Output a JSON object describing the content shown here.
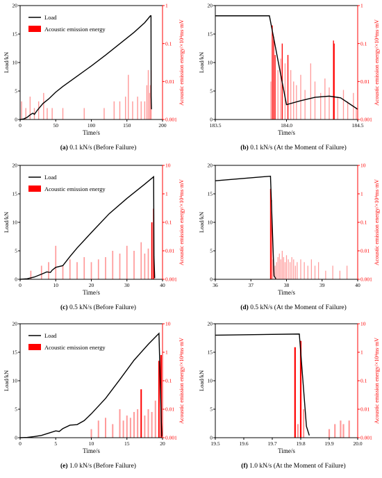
{
  "figure": {
    "axis_labels": {
      "x": "Time/s",
      "y": "Load/kN",
      "y2": "Acoustic emission energy/×10⁴ms·mV"
    },
    "legend": {
      "load": "Load",
      "ae": "Acoustic emission energy"
    },
    "colors": {
      "load": "#000000",
      "ae": "#ff0000",
      "ae_light": "#ff9a9a"
    }
  },
  "chart_data": [
    {
      "type": "line",
      "panel": "a",
      "caption_tag": "(a)",
      "caption_text": " 0.1 kN/s (Before Failure)",
      "legend": true,
      "xlim": [
        0,
        200
      ],
      "xticks": [
        0,
        50,
        100,
        150,
        200
      ],
      "ylim": [
        0,
        20
      ],
      "yticks": [
        0,
        5,
        10,
        15,
        20
      ],
      "y2lim": [
        0.001,
        1
      ],
      "y2ticks": [
        "0.001",
        "0.01",
        "0.1",
        "1"
      ],
      "y2log": true,
      "series": [
        {
          "name": "Load",
          "x": [
            0,
            5,
            10,
            15,
            18,
            20,
            24,
            28,
            32,
            40,
            50,
            60,
            80,
            100,
            120,
            140,
            160,
            175,
            183,
            183.8,
            184,
            184.5
          ],
          "y": [
            0,
            0.1,
            0.4,
            0.9,
            1.1,
            0.9,
            1.6,
            2.2,
            2.8,
            3.6,
            4.8,
            5.8,
            7.6,
            9.4,
            11.3,
            13.3,
            15.3,
            17.0,
            18.2,
            18.2,
            4.0,
            1.8
          ]
        },
        {
          "name": "Acoustic emission energy",
          "type": "bar",
          "x": [
            2,
            8,
            14,
            20,
            26,
            33,
            38,
            45,
            60,
            90,
            118,
            132,
            140,
            148,
            152,
            158,
            165,
            170,
            175,
            178,
            180,
            182,
            183,
            184
          ],
          "y": [
            0.003,
            0.002,
            0.004,
            0.002,
            0.003,
            0.005,
            0.002,
            0.002,
            0.002,
            0.002,
            0.002,
            0.003,
            0.003,
            0.004,
            0.015,
            0.003,
            0.004,
            0.003,
            0.003,
            0.008,
            0.02,
            0.005,
            0.008,
            0.02
          ]
        }
      ]
    },
    {
      "type": "line",
      "panel": "b",
      "caption_tag": "(b)",
      "caption_text": " 0.1 kN/s (At the Moment of Failure)",
      "legend": false,
      "xlim": [
        183.5,
        184.5
      ],
      "xticks": [
        183.5,
        184.0,
        184.5
      ],
      "xtick_labels": [
        "183.5",
        "184.0",
        "184.5"
      ],
      "ylim": [
        0,
        20
      ],
      "yticks": [
        0,
        5,
        10,
        15,
        20
      ],
      "y2lim": [
        0.001,
        1
      ],
      "y2ticks": [
        "0.001",
        "0.01",
        "0.1",
        "1"
      ],
      "y2log": true,
      "series": [
        {
          "name": "Load",
          "x": [
            183.5,
            183.88,
            184.0,
            184.1,
            184.2,
            184.3,
            184.38,
            184.5
          ],
          "y": [
            18.2,
            18.2,
            2.6,
            3.3,
            3.9,
            4.1,
            3.8,
            1.8
          ]
        },
        {
          "name": "Acoustic emission energy",
          "type": "bar",
          "x": [
            183.89,
            183.9,
            183.91,
            183.92,
            183.94,
            183.96,
            183.97,
            183.99,
            184.01,
            184.03,
            184.05,
            184.07,
            184.1,
            184.13,
            184.17,
            184.2,
            184.24,
            184.27,
            184.3,
            184.33,
            184.335,
            184.36,
            184.4,
            184.43,
            184.47,
            184.49
          ],
          "y": [
            0.01,
            0.3,
            0.15,
            0.05,
            0.02,
            0.04,
            0.1,
            0.03,
            0.05,
            0.02,
            0.01,
            0.008,
            0.015,
            0.006,
            0.03,
            0.01,
            0.005,
            0.012,
            0.007,
            0.12,
            0.1,
            0.004,
            0.006,
            0.003,
            0.005,
            0.002
          ]
        }
      ]
    },
    {
      "type": "line",
      "panel": "c",
      "caption_tag": "(c)",
      "caption_text": " 0.5 kN/s (Before Failure)",
      "legend": true,
      "xlim": [
        0,
        40
      ],
      "xticks": [
        0,
        10,
        20,
        30,
        40
      ],
      "ylim": [
        0,
        20
      ],
      "yticks": [
        0,
        5,
        10,
        15,
        20
      ],
      "y2lim": [
        0.001,
        10
      ],
      "y2ticks": [
        "0.001",
        "0.01",
        "0.1",
        "1",
        "10"
      ],
      "y2log": true,
      "series": [
        {
          "name": "Load",
          "x": [
            0,
            2,
            4,
            6,
            7.5,
            8.5,
            9,
            10,
            12,
            14,
            16,
            20,
            25,
            30,
            35,
            37.5,
            37.6,
            37.8
          ],
          "y": [
            0,
            0.1,
            0.4,
            0.9,
            1.3,
            1.2,
            1.6,
            2.1,
            2.4,
            4.0,
            5.5,
            8.2,
            11.5,
            14.2,
            16.7,
            18.0,
            4.0,
            0.2
          ]
        },
        {
          "name": "Acoustic emission energy",
          "type": "bar",
          "x": [
            3,
            6,
            8,
            10,
            12,
            14,
            16,
            18,
            20,
            22,
            24,
            26,
            28,
            30,
            32,
            34,
            35,
            36,
            37,
            37.5
          ],
          "y": [
            0.002,
            0.003,
            0.004,
            0.015,
            0.003,
            0.005,
            0.004,
            0.006,
            0.004,
            0.005,
            0.006,
            0.01,
            0.008,
            0.015,
            0.01,
            0.02,
            0.008,
            0.012,
            0.1,
            0.3
          ]
        }
      ]
    },
    {
      "type": "line",
      "panel": "d",
      "caption_tag": "(d)",
      "caption_text": " 0.5 kN/s (At the Moment of Failure)",
      "legend": false,
      "xlim": [
        36,
        40
      ],
      "xticks": [
        36,
        37,
        38,
        39,
        40
      ],
      "ylim": [
        0,
        20
      ],
      "yticks": [
        0,
        5,
        10,
        15,
        20
      ],
      "y2lim": [
        0.001,
        10
      ],
      "y2ticks": [
        "0.001",
        "0.01",
        "0.1",
        "1",
        "10"
      ],
      "y2log": true,
      "series": [
        {
          "name": "Load",
          "x": [
            36,
            37.55,
            37.65,
            37.7
          ],
          "y": [
            17.3,
            18.1,
            0.6,
            0.1
          ]
        },
        {
          "name": "Acoustic emission energy",
          "type": "bar",
          "x": [
            37.55,
            37.58,
            37.62,
            37.68,
            37.72,
            37.76,
            37.8,
            37.84,
            37.88,
            37.92,
            37.96,
            38.0,
            38.05,
            38.1,
            38.15,
            38.2,
            38.25,
            38.3,
            38.4,
            38.5,
            38.6,
            38.7,
            38.8,
            38.9,
            39.1,
            39.3,
            39.5,
            39.7
          ],
          "y": [
            1.5,
            0.6,
            0.005,
            0.003,
            0.004,
            0.006,
            0.008,
            0.005,
            0.01,
            0.006,
            0.004,
            0.007,
            0.005,
            0.004,
            0.006,
            0.005,
            0.003,
            0.004,
            0.005,
            0.004,
            0.003,
            0.005,
            0.003,
            0.004,
            0.002,
            0.003,
            0.002,
            0.003
          ]
        }
      ]
    },
    {
      "type": "line",
      "panel": "e",
      "caption_tag": "(e)",
      "caption_text": " 1.0 kN/s (Before Failure)",
      "legend": true,
      "xlim": [
        0,
        20
      ],
      "xticks": [
        0,
        5,
        10,
        15,
        20
      ],
      "ylim": [
        0,
        20
      ],
      "yticks": [
        0,
        5,
        10,
        15,
        20
      ],
      "y2lim": [
        0.001,
        10
      ],
      "y2ticks": [
        "0.001",
        "0.01",
        "0.1",
        "1",
        "10"
      ],
      "y2log": true,
      "series": [
        {
          "name": "Load",
          "x": [
            0,
            1,
            2,
            3,
            4,
            5,
            5.5,
            6,
            7,
            8,
            9,
            10,
            12,
            14,
            16,
            18,
            19.5,
            19.8,
            19.9
          ],
          "y": [
            0,
            0.05,
            0.2,
            0.4,
            0.8,
            1.2,
            1.1,
            1.6,
            2.2,
            2.3,
            3.0,
            4.2,
            6.9,
            10.2,
            13.6,
            16.4,
            18.3,
            4.0,
            0.2
          ]
        },
        {
          "name": "Acoustic emission energy",
          "type": "bar",
          "x": [
            10,
            11,
            12,
            13,
            14,
            14.5,
            15,
            15.5,
            16,
            16.5,
            17,
            17.5,
            18,
            18.5,
            19,
            19.5,
            19.8
          ],
          "y": [
            0.002,
            0.004,
            0.005,
            0.003,
            0.01,
            0.004,
            0.006,
            0.005,
            0.008,
            0.01,
            0.05,
            0.006,
            0.01,
            0.008,
            0.02,
            0.5,
            0.8
          ]
        }
      ]
    },
    {
      "type": "line",
      "panel": "f",
      "caption_tag": "(f)",
      "caption_text": " 1.0 kN/s (At the Moment of Failure)",
      "legend": false,
      "xlim": [
        19.5,
        20.0
      ],
      "xticks": [
        19.5,
        19.6,
        19.7,
        19.8,
        19.9,
        20.0
      ],
      "xtick_labels": [
        "19.5",
        "19.6",
        "19.7",
        "19.8",
        "19.9",
        "20.0"
      ],
      "ylim": [
        0,
        20
      ],
      "yticks": [
        0,
        5,
        10,
        15,
        20
      ],
      "y2lim": [
        0.001,
        10
      ],
      "y2ticks": [
        "0.001",
        "0.01",
        "0.1",
        "1",
        "10"
      ],
      "y2log": true,
      "series": [
        {
          "name": "Load",
          "x": [
            19.5,
            19.795,
            19.82,
            19.83
          ],
          "y": [
            18.0,
            18.2,
            2.0,
            0.4
          ]
        },
        {
          "name": "Acoustic emission energy",
          "type": "bar",
          "x": [
            19.78,
            19.79,
            19.8,
            19.81,
            19.9,
            19.92,
            19.94,
            19.95,
            19.97
          ],
          "y": [
            1.5,
            0.003,
            2.5,
            0.01,
            0.002,
            0.003,
            0.004,
            0.003,
            0.004
          ]
        }
      ]
    }
  ]
}
